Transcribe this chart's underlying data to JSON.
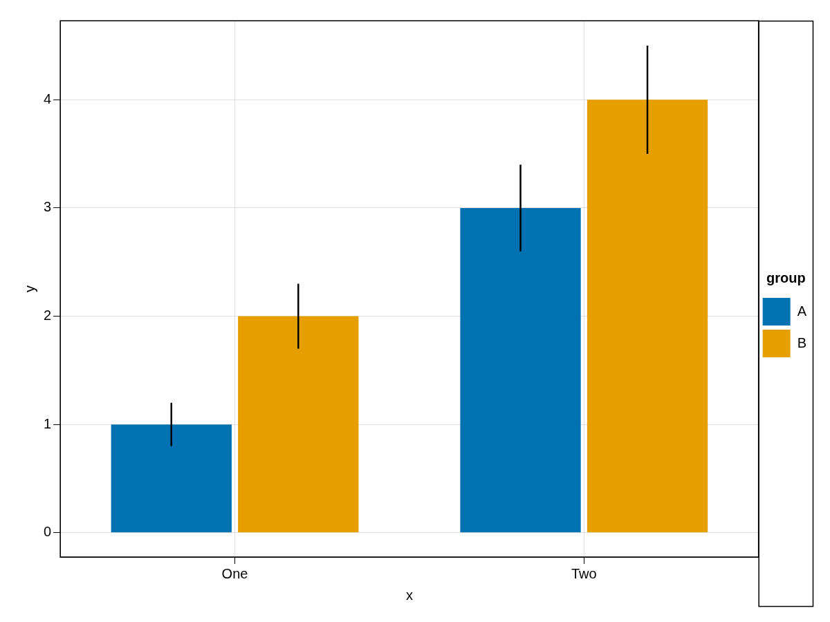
{
  "chart_data": {
    "type": "bar",
    "xlabel": "x",
    "ylabel": "y",
    "legend_title": "group",
    "categories": [
      "One",
      "Two"
    ],
    "series": [
      {
        "name": "A",
        "color": "#0072b2",
        "values": [
          1,
          3
        ],
        "errors": [
          0.2,
          0.4
        ]
      },
      {
        "name": "B",
        "color": "#e69f00",
        "values": [
          2,
          4
        ],
        "errors": [
          0.3,
          0.5
        ]
      }
    ],
    "ylim": [
      -0.225,
      4.73
    ],
    "yticks": [
      0,
      1,
      2,
      3,
      4
    ],
    "grid": true,
    "legend": "right"
  }
}
